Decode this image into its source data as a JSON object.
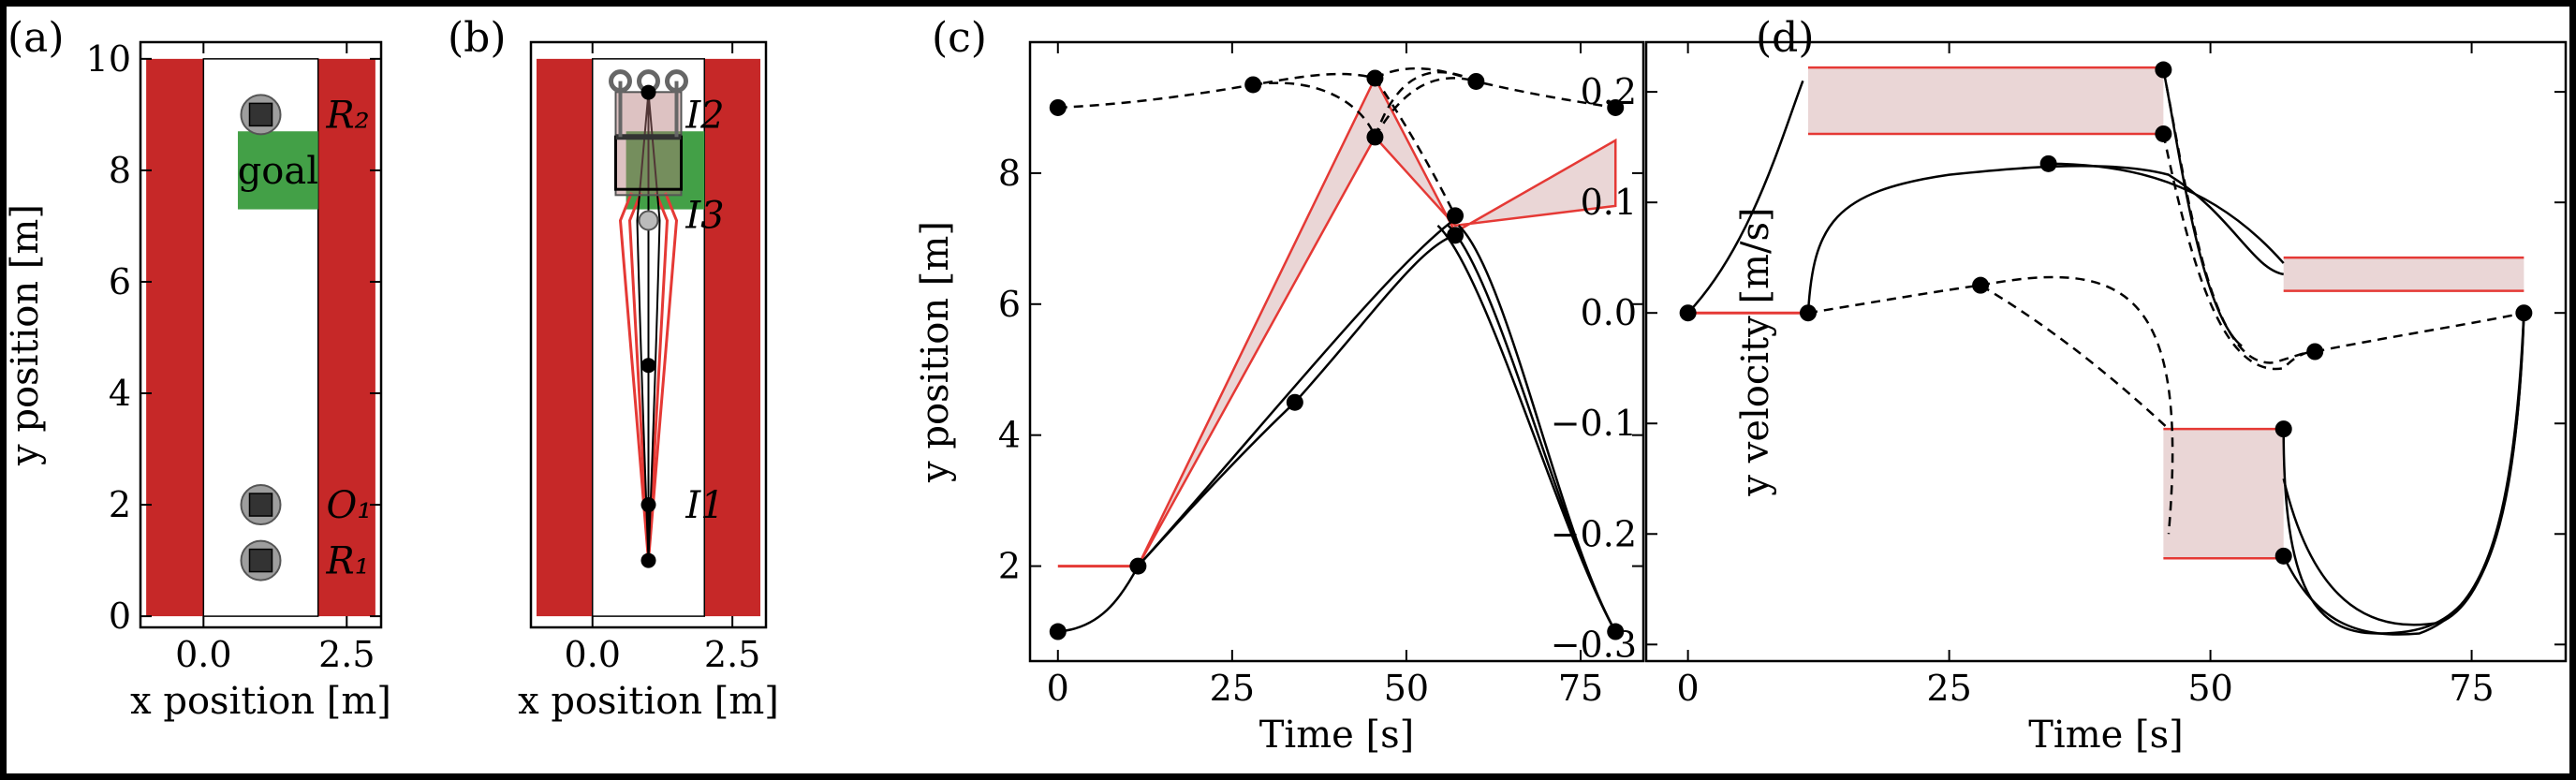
{
  "chart_data": [
    {
      "panel": "(a)",
      "type": "scatter",
      "xlabel": "x position [m]",
      "ylabel": "y position [m]",
      "xlim": [
        -1.1,
        3.1
      ],
      "ylim": [
        -0.2,
        10.3
      ],
      "xticks": [
        {
          "v": 0.0,
          "label": "0.0"
        },
        {
          "v": 2.5,
          "label": "2.5"
        }
      ],
      "yticks": [
        {
          "v": 0,
          "label": "0"
        },
        {
          "v": 2,
          "label": "2"
        },
        {
          "v": 4,
          "label": "4"
        },
        {
          "v": 6,
          "label": "6"
        },
        {
          "v": 8,
          "label": "8"
        },
        {
          "v": 10,
          "label": "10"
        }
      ],
      "walls": [
        {
          "x0": -1.0,
          "x1": 0.0
        },
        {
          "x0": 2.0,
          "x1": 3.0
        }
      ],
      "goal": {
        "label": "goal",
        "x0": 0.6,
        "x1": 2.0,
        "y0": 7.3,
        "y1": 8.7
      },
      "objects": [
        {
          "label": "R₂",
          "x": 1.0,
          "y": 9.0
        },
        {
          "label": "O₁",
          "x": 1.0,
          "y": 2.0
        },
        {
          "label": "R₁",
          "x": 1.0,
          "y": 1.0
        }
      ],
      "colors": {
        "wall": "#c62828",
        "goal": "#43a047"
      }
    },
    {
      "panel": "(b)",
      "type": "scatter",
      "xlabel": "x position [m]",
      "xlim": [
        -1.1,
        3.1
      ],
      "ylim": [
        -0.2,
        10.3
      ],
      "xticks": [
        {
          "v": 0.0,
          "label": "0.0"
        },
        {
          "v": 2.5,
          "label": "2.5"
        }
      ],
      "walls": [
        {
          "x0": -1.0,
          "x1": 0.0
        },
        {
          "x0": 2.0,
          "x1": 3.0
        }
      ],
      "goal": {
        "x0": 0.6,
        "x1": 2.0,
        "y0": 7.3,
        "y1": 8.7
      },
      "interval_labels": [
        {
          "label": "I2",
          "y": 9.0
        },
        {
          "label": "I3",
          "y": 7.2
        },
        {
          "label": "I1",
          "y": 2.0
        }
      ],
      "path_points": [
        {
          "x": 1.0,
          "y": 1.0
        },
        {
          "x": 1.0,
          "y": 2.0
        },
        {
          "x": 1.0,
          "y": 4.5
        },
        {
          "x": 1.0,
          "y": 7.1
        },
        {
          "x": 1.0,
          "y": 9.4
        }
      ]
    },
    {
      "panel": "(c)",
      "type": "line",
      "xlabel": "Time [s]",
      "ylabel": "y position [m]",
      "xlim": [
        -4,
        84
      ],
      "ylim": [
        0.55,
        10.0
      ],
      "xticks": [
        {
          "v": 0,
          "label": "0"
        },
        {
          "v": 25,
          "label": "25"
        },
        {
          "v": 50,
          "label": "50"
        },
        {
          "v": 75,
          "label": "75"
        }
      ],
      "yticks": [
        {
          "v": 2,
          "label": "2"
        },
        {
          "v": 4,
          "label": "4"
        },
        {
          "v": 6,
          "label": "6"
        },
        {
          "v": 8,
          "label": "8"
        }
      ],
      "solid_markers": [
        [
          0,
          1.0
        ],
        [
          11.5,
          2.0
        ],
        [
          34,
          4.5
        ],
        [
          57,
          7.05
        ],
        [
          80,
          1.0
        ]
      ],
      "dashed_markers": [
        [
          0,
          9.0
        ],
        [
          28,
          9.35
        ],
        [
          45.5,
          9.45
        ],
        [
          45.5,
          8.55
        ],
        [
          60,
          9.4
        ],
        [
          80,
          9.0
        ],
        [
          57,
          7.35
        ]
      ],
      "bands": [
        {
          "poly": [
            [
              0,
              2.0
            ],
            [
              11.5,
              2.0
            ]
          ]
        },
        {
          "poly": [
            [
              11.5,
              2.0
            ],
            [
              45.5,
              9.45
            ],
            [
              57,
              7.1
            ],
            [
              80,
              8.5
            ],
            [
              80,
              7.5
            ],
            [
              57,
              7.2
            ],
            [
              45.5,
              8.55
            ],
            [
              11.5,
              2.0
            ]
          ]
        }
      ]
    },
    {
      "panel": "(d)",
      "type": "line",
      "xlabel": "Time [s]",
      "ylabel": "y velocity [m/s]",
      "xlim": [
        -4,
        84
      ],
      "ylim": [
        -0.315,
        0.245
      ],
      "xticks": [
        {
          "v": 0,
          "label": "0"
        },
        {
          "v": 25,
          "label": "25"
        },
        {
          "v": 50,
          "label": "50"
        },
        {
          "v": 75,
          "label": "75"
        }
      ],
      "yticks": [
        {
          "v": 0.2,
          "label": "0.2"
        },
        {
          "v": 0.1,
          "label": "0.1"
        },
        {
          "v": 0.0,
          "label": "0.0"
        },
        {
          "v": -0.1,
          "label": "−0.1"
        },
        {
          "v": -0.2,
          "label": "−0.2"
        },
        {
          "v": -0.3,
          "label": "−0.3"
        }
      ],
      "solid_markers": [
        [
          0,
          0.0
        ],
        [
          11.5,
          0.0
        ],
        [
          34.5,
          0.135
        ],
        [
          45.5,
          0.22
        ],
        [
          45.5,
          0.162
        ],
        [
          57,
          -0.105
        ],
        [
          57,
          -0.22
        ],
        [
          80,
          0.0
        ]
      ],
      "dashed_markers": [
        [
          28,
          0.025
        ],
        [
          60,
          -0.035
        ]
      ],
      "bands": [
        {
          "x0": 11.5,
          "x1": 45.5,
          "y0": 0.162,
          "y1": 0.222
        },
        {
          "x0": 45.5,
          "x1": 57,
          "y0": -0.222,
          "y1": -0.105
        },
        {
          "x0": 57,
          "x1": 80,
          "y0": 0.02,
          "y1": 0.05
        }
      ],
      "zero_segment": [
        [
          0,
          0.0
        ],
        [
          11.5,
          0.0
        ]
      ]
    }
  ],
  "colors": {
    "band_fill": "#ead6d6",
    "band_edge": "#e53935",
    "line": "#000000"
  }
}
